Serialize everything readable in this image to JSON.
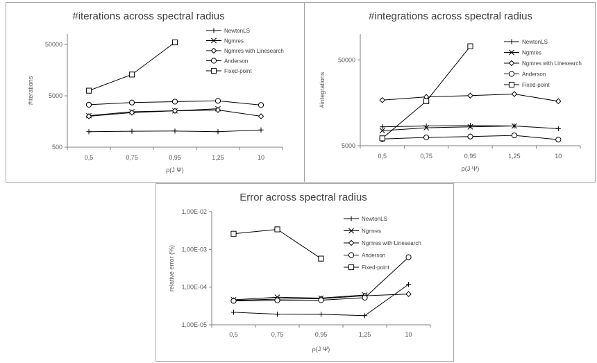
{
  "chart_data": [
    {
      "type": "line",
      "title": "#iterations across spectral radius",
      "xlabel": "ρ(J Ψ)",
      "ylabel": "#iterations",
      "yscale": "log",
      "ylim": [
        500,
        80000
      ],
      "yticks": [
        "500",
        "5000",
        "50000"
      ],
      "categories": [
        "0,5",
        "0,75",
        "0,95",
        "1,25",
        "10"
      ],
      "legend_position": "right",
      "series": [
        {
          "name": "NewtonLS",
          "marker": "plus",
          "values": [
            1000,
            1020,
            1030,
            1000,
            1080
          ]
        },
        {
          "name": "Ngmres",
          "marker": "x",
          "values": [
            2050,
            2450,
            2550,
            2800,
            null
          ]
        },
        {
          "name": "Ngmres with Linesearch",
          "marker": "diamond",
          "values": [
            2000,
            2350,
            2550,
            2650,
            2000
          ]
        },
        {
          "name": "Anderson",
          "marker": "circle",
          "values": [
            3350,
            3700,
            3850,
            4000,
            3300
          ]
        },
        {
          "name": "Fixed-point",
          "marker": "square",
          "values": [
            6300,
            13000,
            55000,
            null,
            null
          ]
        }
      ]
    },
    {
      "type": "line",
      "title": "#integrations across spectral radius",
      "xlabel": "ρ(J Ψ)",
      "ylabel": "#integrations",
      "yscale": "log",
      "ylim": [
        5000,
        100000
      ],
      "yticks": [
        "5000",
        "50000"
      ],
      "categories": [
        "0,5",
        "0,75",
        "0,95",
        "1,25",
        "10"
      ],
      "legend_position": "right",
      "series": [
        {
          "name": "NewtonLS",
          "marker": "plus",
          "values": [
            8300,
            8500,
            8600,
            8500,
            7900
          ]
        },
        {
          "name": "Ngmres",
          "marker": "x",
          "values": [
            7500,
            8100,
            8300,
            8500,
            null
          ]
        },
        {
          "name": "Ngmres with Linesearch",
          "marker": "diamond",
          "values": [
            17000,
            18500,
            19200,
            20000,
            16500
          ]
        },
        {
          "name": "Anderson",
          "marker": "circle",
          "values": [
            6000,
            6250,
            6400,
            6600,
            5900
          ]
        },
        {
          "name": "Fixed-point",
          "marker": "square",
          "values": [
            6100,
            16500,
            72000,
            null,
            null
          ]
        }
      ]
    },
    {
      "type": "line",
      "title": "Error across spectral radius",
      "xlabel": "ρ(J Ψ)",
      "ylabel": "relative error (%)",
      "yscale": "log",
      "ylim": [
        1e-05,
        0.01
      ],
      "yticks": [
        "1,00E-05",
        "1,00E-04",
        "1,00E-03",
        "1,00E-02"
      ],
      "categories": [
        "0,5",
        "0,75",
        "0,95",
        "1,25",
        "10"
      ],
      "legend_position": "right",
      "series": [
        {
          "name": "NewtonLS",
          "marker": "plus",
          "values": [
            2.15e-05,
            1.92e-05,
            1.9e-05,
            1.75e-05,
            0.000118
          ]
        },
        {
          "name": "Ngmres",
          "marker": "x",
          "values": [
            4.6e-05,
            5.4e-05,
            5.1e-05,
            6.2e-05,
            null
          ]
        },
        {
          "name": "Ngmres with Linesearch",
          "marker": "diamond",
          "values": [
            4.45e-05,
            4.8e-05,
            4.95e-05,
            5.9e-05,
            6.55e-05
          ]
        },
        {
          "name": "Anderson",
          "marker": "circle",
          "values": [
            4.3e-05,
            4.45e-05,
            4.5e-05,
            5.25e-05,
            0.00062
          ]
        },
        {
          "name": "Fixed-point",
          "marker": "square",
          "values": [
            0.0026,
            0.0034,
            0.00057,
            null,
            null
          ]
        }
      ]
    }
  ]
}
